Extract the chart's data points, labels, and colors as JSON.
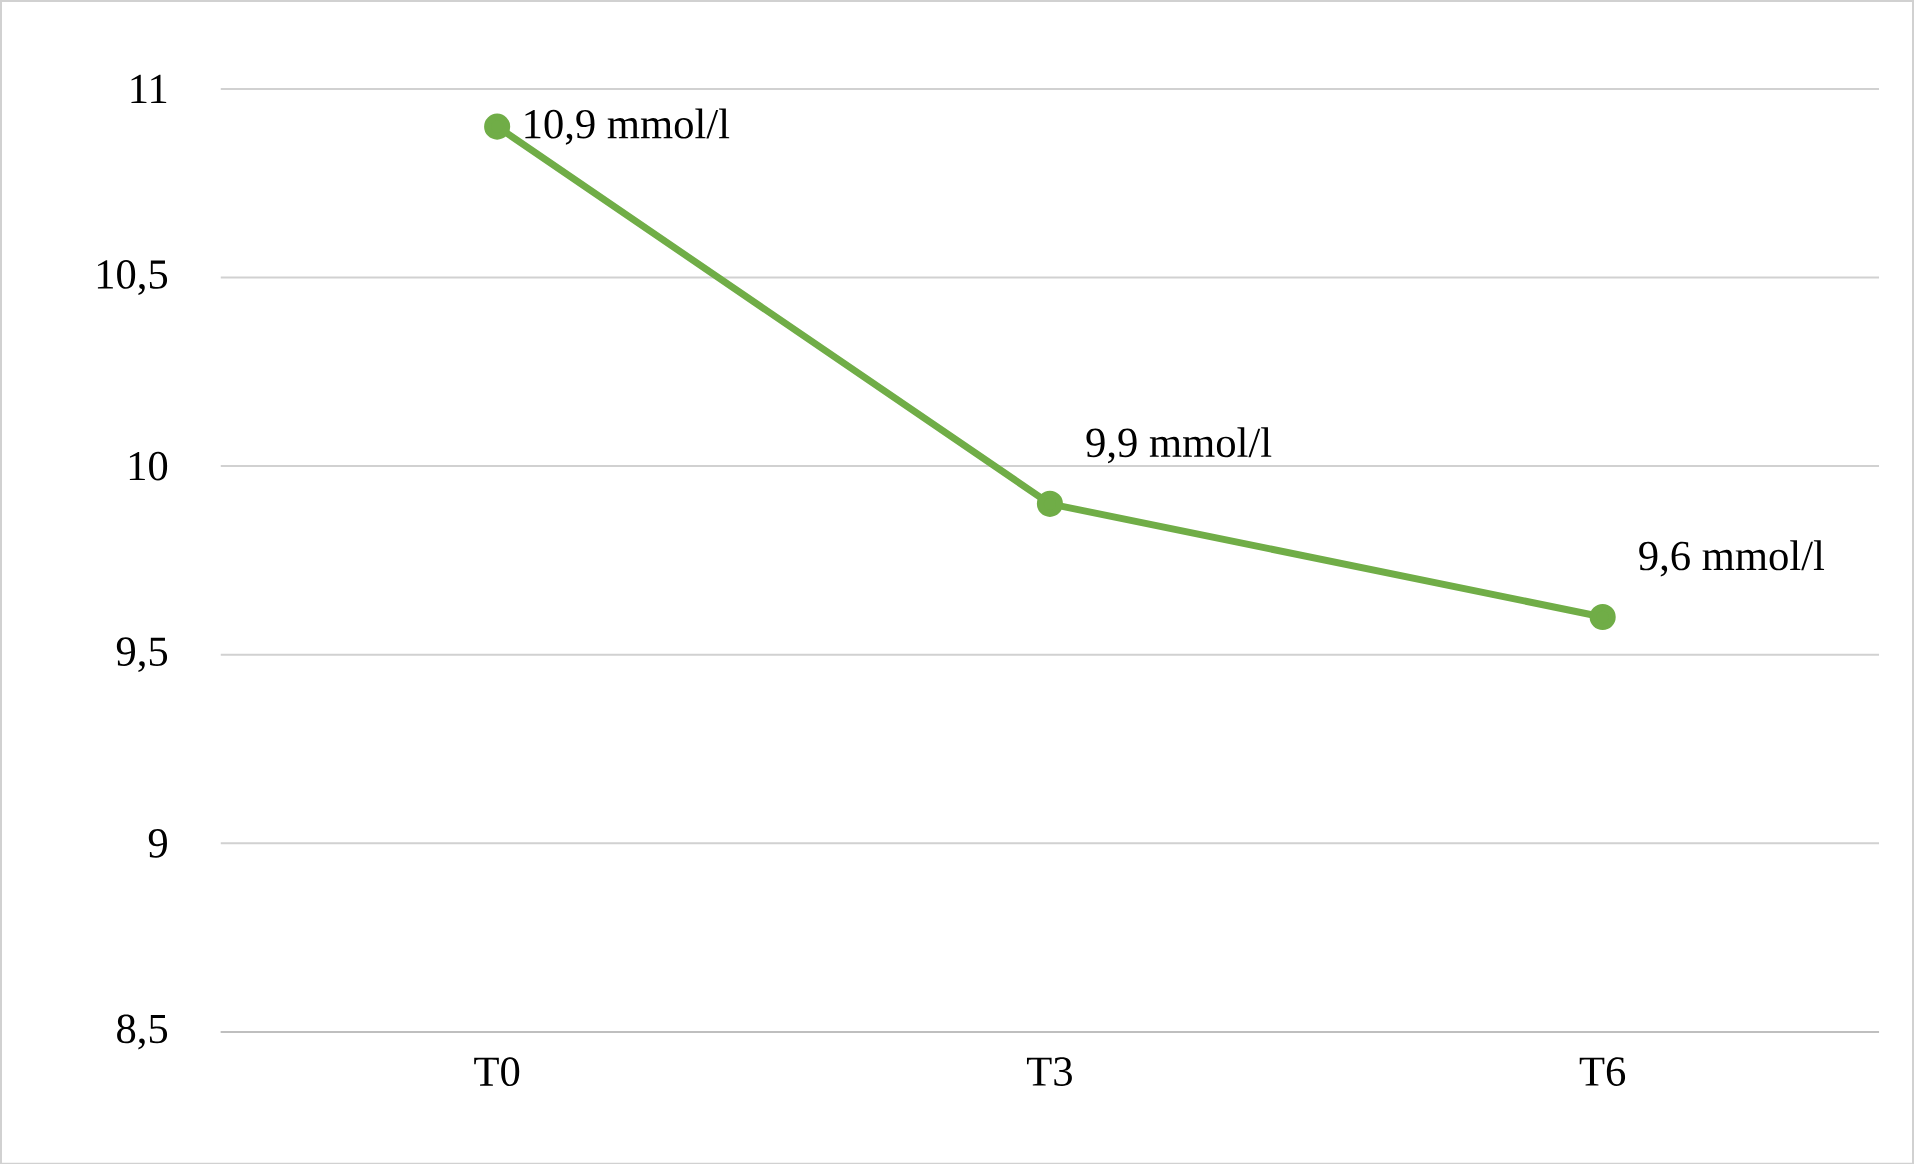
{
  "chart_data": {
    "type": "line",
    "categories": [
      "T0",
      "T3",
      "T6"
    ],
    "series": [
      {
        "color": "#70ad47",
        "values": [
          10.9,
          9.9,
          9.6
        ],
        "value_labels": [
          "10,9 mmol/l",
          "9,9 mmol/l",
          "9,6 mmol/l"
        ]
      }
    ],
    "ylim": [
      8.5,
      11
    ],
    "yticks": [
      {
        "value": 8.5,
        "label": "8,5"
      },
      9,
      {
        "value": 9.5,
        "label": "9,5"
      },
      10,
      {
        "value": 10.5,
        "label": "10,5"
      },
      11
    ],
    "grid": "y",
    "marker": "circle",
    "line_style": "solid"
  }
}
